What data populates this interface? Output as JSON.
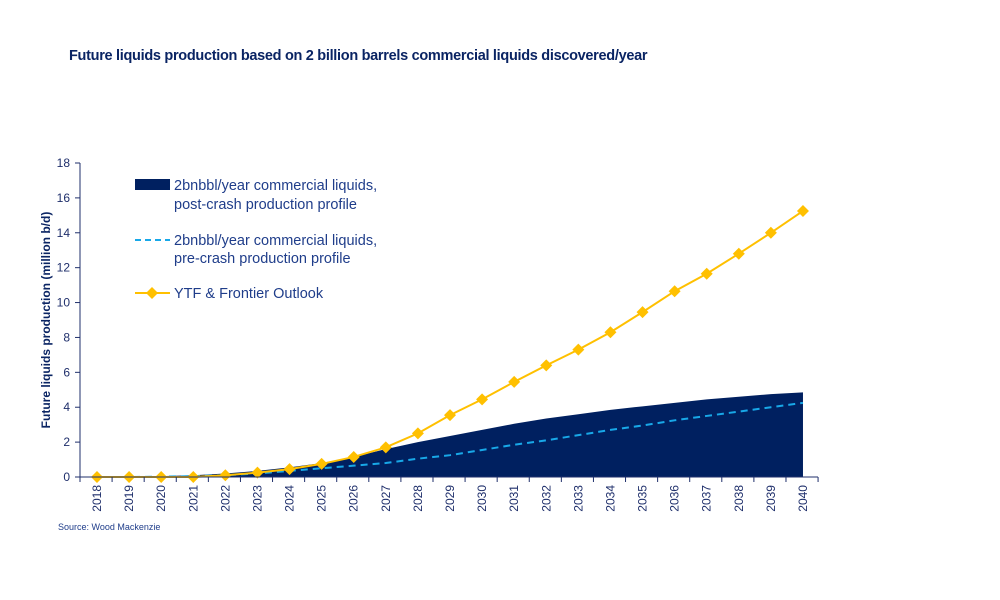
{
  "title": "Future liquids production based on 2 billion barrels commercial liquids discovered/year",
  "source": "Source: Wood Mackenzie",
  "chart_data": {
    "type": "line",
    "title": "Future liquids production based on 2 billion barrels commercial liquids discovered/year",
    "xlabel": "",
    "ylabel": "Future liquids production (million b/d)",
    "ylim": [
      0,
      18
    ],
    "yticks": [
      0,
      2,
      4,
      6,
      8,
      10,
      12,
      14,
      16,
      18
    ],
    "grid": false,
    "legend_position": "top-left",
    "categories": [
      "2018",
      "2019",
      "2020",
      "2021",
      "2022",
      "2023",
      "2024",
      "2025",
      "2026",
      "2027",
      "2028",
      "2029",
      "2030",
      "2031",
      "2032",
      "2033",
      "2034",
      "2035",
      "2036",
      "2037",
      "2038",
      "2039",
      "2040"
    ],
    "series": [
      {
        "name": "2bnbbl/year commercial liquids, post-crash production profile",
        "style": "area",
        "color": "#002060",
        "values": [
          0,
          0.02,
          0.05,
          0.1,
          0.2,
          0.35,
          0.55,
          0.8,
          1.15,
          1.6,
          2.0,
          2.35,
          2.7,
          3.05,
          3.35,
          3.6,
          3.85,
          4.05,
          4.25,
          4.45,
          4.6,
          4.75,
          4.85
        ]
      },
      {
        "name": "2bnbbl/year commercial liquids, pre-crash production profile",
        "style": "dashed",
        "color": "#18a8e8",
        "values": [
          0,
          0,
          0.02,
          0.05,
          0.1,
          0.2,
          0.35,
          0.5,
          0.65,
          0.8,
          1.05,
          1.25,
          1.55,
          1.85,
          2.1,
          2.4,
          2.7,
          2.95,
          3.25,
          3.5,
          3.75,
          4.0,
          4.25
        ]
      },
      {
        "name": "YTF & Frontier Outlook",
        "style": "line-diamond",
        "color": "#ffc000",
        "values": [
          0,
          0,
          0,
          0,
          0.1,
          0.25,
          0.45,
          0.75,
          1.15,
          1.7,
          2.5,
          3.55,
          4.45,
          5.45,
          6.4,
          7.3,
          8.3,
          9.45,
          10.65,
          11.65,
          12.8,
          14.0,
          15.25
        ]
      }
    ]
  }
}
